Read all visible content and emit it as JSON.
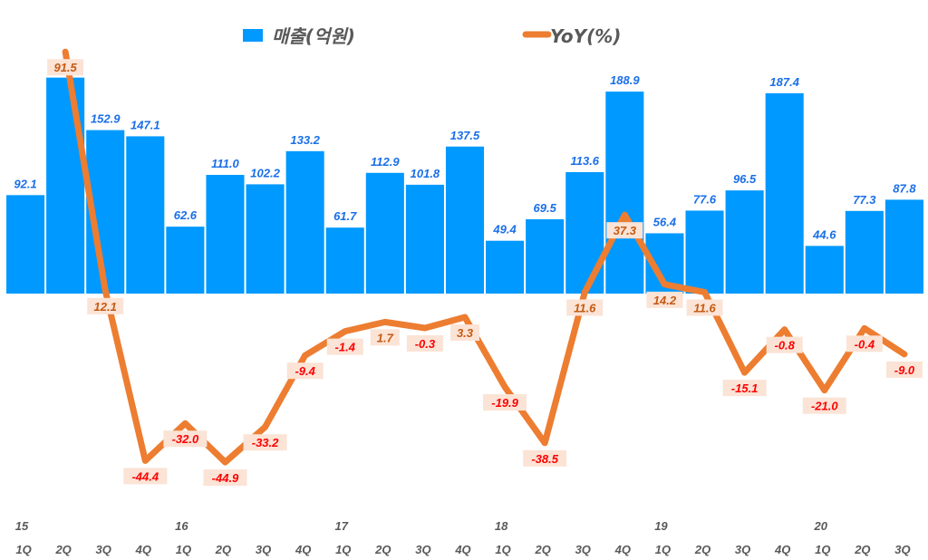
{
  "chart_data": {
    "type": "bar+line",
    "title": "",
    "categories": [
      "1Q",
      "2Q",
      "3Q",
      "4Q",
      "1Q",
      "2Q",
      "3Q",
      "4Q",
      "1Q",
      "2Q",
      "3Q",
      "4Q",
      "1Q",
      "2Q",
      "3Q",
      "4Q",
      "1Q",
      "2Q",
      "3Q",
      "4Q",
      "1Q",
      "2Q",
      "3Q"
    ],
    "year_labels": [
      "15",
      "",
      "",
      "",
      "16",
      "",
      "",
      "",
      "17",
      "",
      "",
      "",
      "18",
      "",
      "",
      "",
      "19",
      "",
      "",
      "",
      "20",
      "",
      ""
    ],
    "series": [
      {
        "name": "매출(억원)",
        "type": "bar",
        "axis": "primary",
        "color": "#0099ff",
        "values": [
          92.1,
          202,
          152.9,
          147.1,
          62.6,
          111.0,
          102.2,
          133.2,
          61.7,
          112.9,
          101.8,
          137.5,
          49.4,
          69.5,
          113.6,
          188.9,
          56.4,
          77.6,
          96.5,
          187.4,
          44.6,
          77.3,
          87.8
        ],
        "labels": [
          "92.1",
          "",
          "152.9",
          "147.1",
          "62.6",
          "111.0",
          "102.2",
          "133.2",
          "61.7",
          "112.9",
          "101.8",
          "137.5",
          "49.4",
          "69.5",
          "113.6",
          "188.9",
          "56.4",
          "77.6",
          "96.5",
          "187.4",
          "44.6",
          "77.3",
          "87.8"
        ]
      },
      {
        "name": "YoY(%)",
        "type": "line",
        "axis": "secondary",
        "color": "#ed7d31",
        "values": [
          null,
          91.5,
          12.1,
          -44.4,
          -32.0,
          -44.9,
          -33.2,
          -9.4,
          -1.4,
          1.7,
          -0.3,
          3.3,
          -19.9,
          -38.5,
          11.6,
          37.3,
          14.2,
          11.6,
          -15.1,
          -0.8,
          -21.0,
          -0.4,
          -9.0
        ],
        "labels": [
          "",
          "91.5",
          "12.1",
          "-44.4",
          "-32.0",
          "-44.9",
          "-33.2",
          "-9.4",
          "-1.4",
          "1.7",
          "-0.3",
          "3.3",
          "-19.9",
          "-38.5",
          "11.6",
          "37.3",
          "14.2",
          "11.6",
          "-15.1",
          "-0.8",
          "-21.0",
          "-0.4",
          "-9.0"
        ]
      }
    ],
    "legend": "top-center",
    "grid": false,
    "colors": {
      "positive_label": "#c55a11",
      "negative_label": "#ff0000",
      "label_box": "#fbe3d6",
      "bar_label": "#1a6fe8"
    }
  }
}
